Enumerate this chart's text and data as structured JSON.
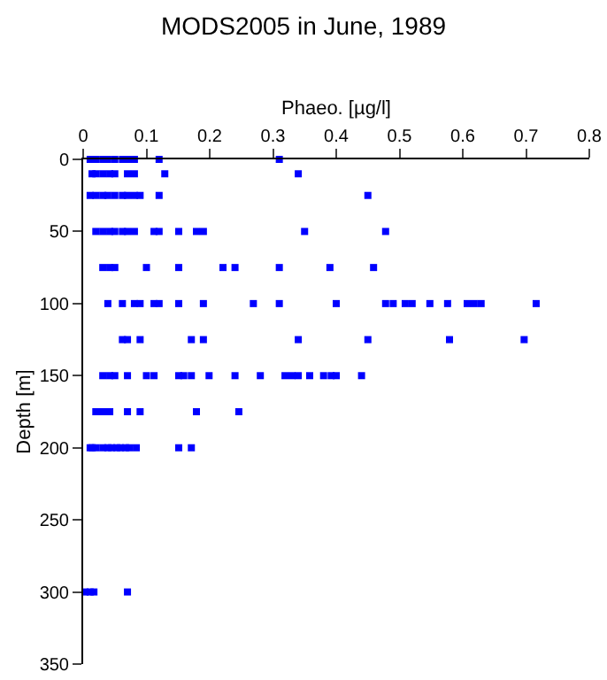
{
  "chart_data": {
    "type": "scatter",
    "title": "MODS2005 in June, 1989",
    "xlabel": "Phaeo. [µg/l]",
    "ylabel": "Depth [m]",
    "xlim": [
      0,
      0.8
    ],
    "xticks": [
      0,
      0.1,
      0.2,
      0.3,
      0.4,
      0.5,
      0.6,
      0.7,
      0.8
    ],
    "ylim": [
      350,
      0
    ],
    "yticks": [
      0,
      50,
      100,
      150,
      200,
      250,
      300,
      350
    ],
    "marker": "square",
    "series": [
      {
        "color": "#0000ff",
        "x": [
          0.011,
          0.02,
          0.031,
          0.039,
          0.05,
          0.062,
          0.07,
          0.081,
          0.12,
          0.31,
          0.014,
          0.02,
          0.031,
          0.042,
          0.05,
          0.07,
          0.081,
          0.129,
          0.34,
          0.011,
          0.02,
          0.031,
          0.039,
          0.05,
          0.062,
          0.07,
          0.081,
          0.09,
          0.12,
          0.45,
          0.02,
          0.031,
          0.042,
          0.05,
          0.062,
          0.07,
          0.081,
          0.112,
          0.12,
          0.151,
          0.179,
          0.19,
          0.35,
          0.478,
          0.031,
          0.042,
          0.05,
          0.1,
          0.151,
          0.221,
          0.24,
          0.31,
          0.39,
          0.459,
          0.039,
          0.062,
          0.081,
          0.09,
          0.112,
          0.12,
          0.151,
          0.19,
          0.269,
          0.31,
          0.4,
          0.478,
          0.49,
          0.509,
          0.52,
          0.548,
          0.576,
          0.607,
          0.618,
          0.629,
          0.716,
          0.062,
          0.07,
          0.09,
          0.171,
          0.19,
          0.34,
          0.45,
          0.579,
          0.697,
          0.031,
          0.042,
          0.05,
          0.07,
          0.1,
          0.112,
          0.151,
          0.159,
          0.171,
          0.199,
          0.24,
          0.28,
          0.319,
          0.33,
          0.34,
          0.358,
          0.38,
          0.392,
          0.4,
          0.44,
          0.02,
          0.028,
          0.034,
          0.042,
          0.07,
          0.09,
          0.179,
          0.246,
          0.011,
          0.014,
          0.02,
          0.031,
          0.039,
          0.045,
          0.053,
          0.059,
          0.067,
          0.073,
          0.084,
          0.151,
          0.171,
          0.003,
          0.011,
          0.017,
          0.07
        ],
        "values": [
          0,
          0,
          0,
          0,
          0,
          0,
          0,
          0,
          0,
          0,
          10,
          10,
          10,
          10,
          10,
          10,
          10,
          10,
          10,
          25,
          25,
          25,
          25,
          25,
          25,
          25,
          25,
          25,
          25,
          25,
          50,
          50,
          50,
          50,
          50,
          50,
          50,
          50,
          50,
          50,
          50,
          50,
          50,
          50,
          75,
          75,
          75,
          75,
          75,
          75,
          75,
          75,
          75,
          75,
          100,
          100,
          100,
          100,
          100,
          100,
          100,
          100,
          100,
          100,
          100,
          100,
          100,
          100,
          100,
          100,
          100,
          100,
          100,
          100,
          100,
          125,
          125,
          125,
          125,
          125,
          125,
          125,
          125,
          125,
          150,
          150,
          150,
          150,
          150,
          150,
          150,
          150,
          150,
          150,
          150,
          150,
          150,
          150,
          150,
          150,
          150,
          150,
          150,
          150,
          175,
          175,
          175,
          175,
          175,
          175,
          175,
          175,
          200,
          200,
          200,
          200,
          200,
          200,
          200,
          200,
          200,
          200,
          200,
          200,
          200,
          300,
          300,
          300,
          300
        ]
      }
    ]
  }
}
